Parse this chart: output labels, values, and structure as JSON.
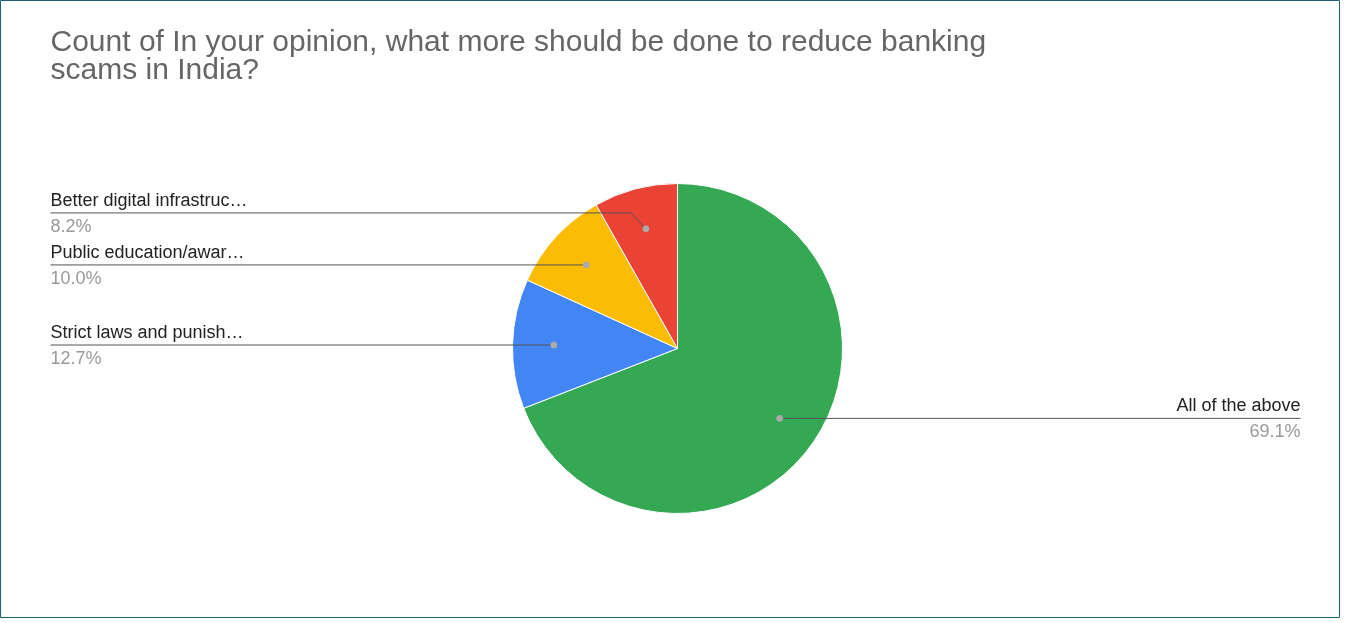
{
  "chart_data": {
    "type": "pie",
    "title": "Count of In your opinion, what more should be done to reduce banking scams in India?",
    "categories": [
      "All of the above",
      "Strict laws and punish…",
      "Public education/awar…",
      "Better digital infrastruc…"
    ],
    "values": [
      69.1,
      12.7,
      10.0,
      8.2
    ],
    "colors": [
      "#34a853",
      "#4285f4",
      "#fbbc04",
      "#ea4335"
    ],
    "value_labels": [
      "69.1%",
      "12.7%",
      "10.0%",
      "8.2%"
    ]
  }
}
